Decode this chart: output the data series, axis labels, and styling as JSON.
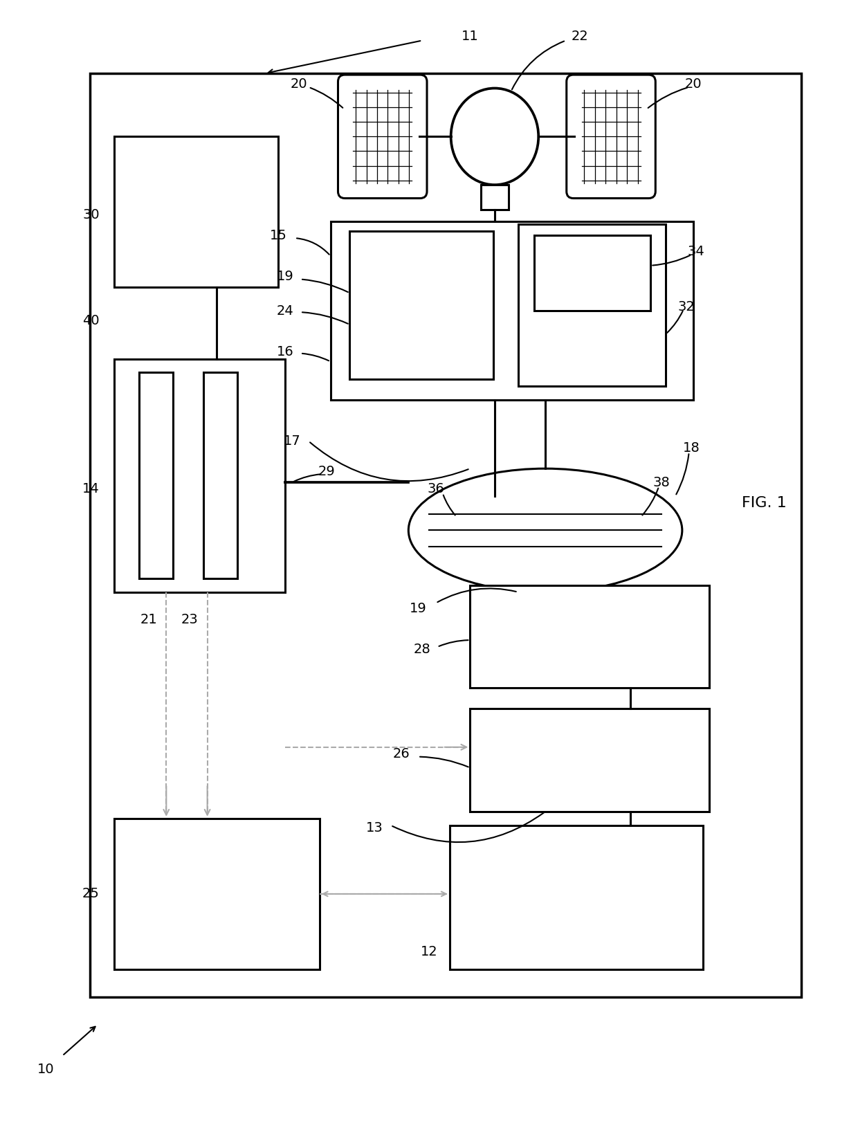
{
  "bg_color": "#ffffff",
  "line_color": "#000000",
  "dashed_color": "#aaaaaa",
  "fig_width": 12.4,
  "fig_height": 16.36
}
